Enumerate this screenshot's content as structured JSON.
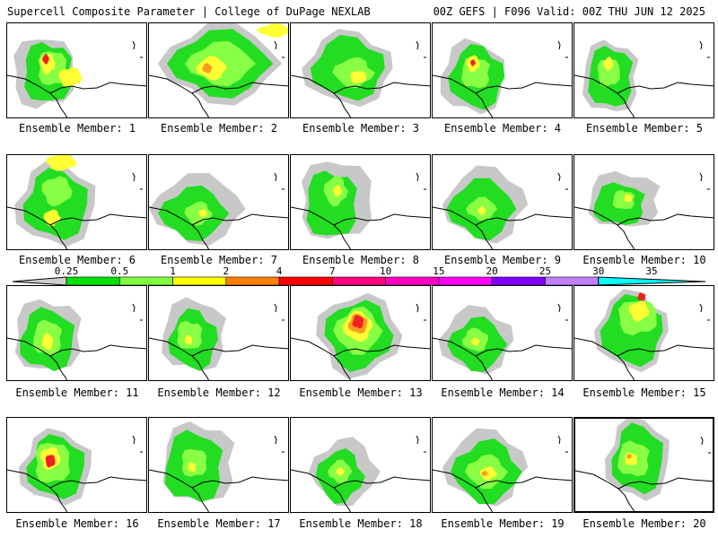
{
  "header": {
    "left": "Supercell Composite Parameter | College of DuPage NEXLAB",
    "right": "00Z GEFS | F096 Valid: 00Z THU JUN 12 2025"
  },
  "members": [
    {
      "label": "Ensemble Member: 1"
    },
    {
      "label": "Ensemble Member: 2"
    },
    {
      "label": "Ensemble Member: 3"
    },
    {
      "label": "Ensemble Member: 4"
    },
    {
      "label": "Ensemble Member: 5"
    },
    {
      "label": "Ensemble Member: 6"
    },
    {
      "label": "Ensemble Member: 7"
    },
    {
      "label": "Ensemble Member: 8"
    },
    {
      "label": "Ensemble Member: 9"
    },
    {
      "label": "Ensemble Member: 10"
    },
    {
      "label": "Ensemble Member: 11"
    },
    {
      "label": "Ensemble Member: 12"
    },
    {
      "label": "Ensemble Member: 13"
    },
    {
      "label": "Ensemble Member: 14"
    },
    {
      "label": "Ensemble Member: 15"
    },
    {
      "label": "Ensemble Member: 16"
    },
    {
      "label": "Ensemble Member: 17"
    },
    {
      "label": "Ensemble Member: 18"
    },
    {
      "label": "Ensemble Member: 19"
    },
    {
      "label": "Ensemble Member: 20"
    }
  ],
  "colorbar": {
    "labels": [
      "0.25",
      "0.5",
      "1",
      "2",
      "4",
      "7",
      "10",
      "15",
      "20",
      "25",
      "30",
      "35"
    ],
    "colors": [
      "#cfcfcf",
      "#00e000",
      "#80ff40",
      "#ffff00",
      "#ff8000",
      "#ff0000",
      "#ff0080",
      "#ff00c0",
      "#ff00ff",
      "#8000ff",
      "#c080ff",
      "#00ffff"
    ]
  }
}
